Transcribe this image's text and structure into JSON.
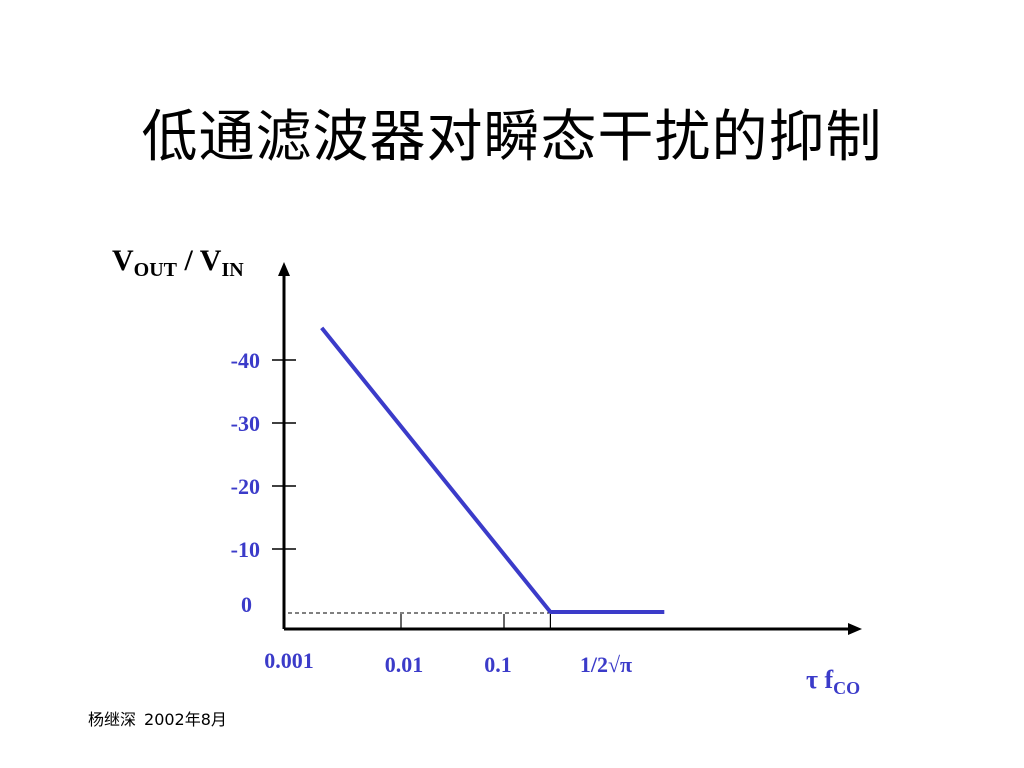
{
  "slide": {
    "title": "低通滤波器对瞬态干扰的抑制"
  },
  "footer": {
    "author": "杨继深",
    "date": "2002年8月"
  },
  "colors": {
    "accent": "#3b3bc9",
    "axis": "#000000",
    "guide": "#000000"
  },
  "chart_data": {
    "type": "line",
    "title": "低通滤波器对瞬态干扰的抑制",
    "ylabel": {
      "base": "V",
      "sub1": "OUT",
      "mid": " / V",
      "sub2": "IN"
    },
    "xlabel": {
      "base": "τ f",
      "sub": "CO"
    },
    "y_ticks": [
      {
        "label": "-40",
        "value": 40
      },
      {
        "label": "-30",
        "value": 30
      },
      {
        "label": "-20",
        "value": 20
      },
      {
        "label": "-10",
        "value": 10
      },
      {
        "label": "0",
        "value": 0
      }
    ],
    "x_ticks": [
      {
        "label": "0.001",
        "value": 0.001
      },
      {
        "label": "0.01",
        "value": 0.01
      },
      {
        "label": "0.1",
        "value": 0.1
      },
      {
        "label": "1/2√π",
        "value": 0.2821
      }
    ],
    "x_scale": "log",
    "series": [
      {
        "points": [
          {
            "x": 0.0017,
            "y": 45.1
          },
          {
            "x": 0.2821,
            "y": 0
          },
          {
            "x": 3.6,
            "y": 0
          }
        ]
      }
    ],
    "reference_line": {
      "y": 0,
      "style": "dashed"
    },
    "grid": false,
    "legend": "none"
  }
}
